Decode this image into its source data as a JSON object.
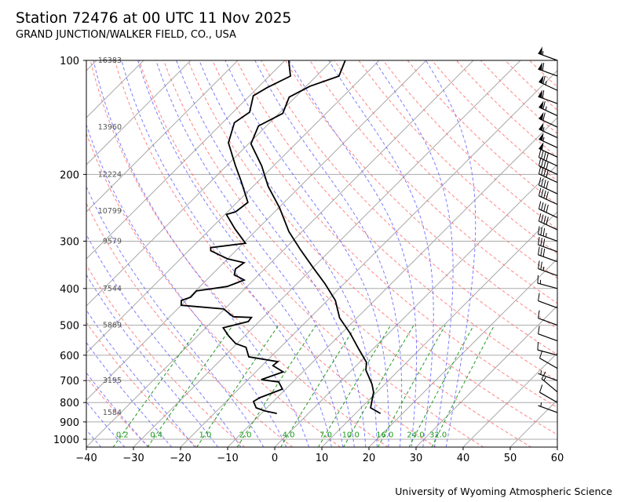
{
  "header": {
    "title": "Station 72476 at 00 UTC 11 Nov 2025",
    "subtitle": "GRAND JUNCTION/WALKER FIELD, CO., USA"
  },
  "footer": "University of Wyoming Atmospheric Science",
  "colors": {
    "isotherm": "#aaaaaa",
    "dry_adiabat": "#ff6666",
    "moist_adiabat": "#6666ff",
    "mixing_ratio": "#229922",
    "profile": "#000000"
  },
  "chart_data": {
    "type": "line",
    "subtype": "skew-t log-p",
    "title": "Station 72476 at 00 UTC 11 Nov 2025",
    "xlabel": "",
    "ylabel": "",
    "xlim": [
      -40,
      60
    ],
    "ylim": [
      1050,
      100
    ],
    "x_ticks": [
      "−40",
      "−30",
      "−20",
      "−10",
      "0",
      "10",
      "20",
      "30",
      "40",
      "50",
      "60"
    ],
    "x_tick_values": [
      -40,
      -30,
      -20,
      -10,
      0,
      10,
      20,
      30,
      40,
      50,
      60
    ],
    "y_ticks": [
      "100",
      "200",
      "300",
      "400",
      "500",
      "600",
      "700",
      "800",
      "900",
      "1000"
    ],
    "y_tick_values": [
      100,
      200,
      300,
      400,
      500,
      600,
      700,
      800,
      900,
      1000
    ],
    "height_labels": [
      {
        "p": 100,
        "text": "16383"
      },
      {
        "p": 150,
        "text": "13960"
      },
      {
        "p": 200,
        "text": "12224"
      },
      {
        "p": 250,
        "text": "10799"
      },
      {
        "p": 300,
        "text": "9579"
      },
      {
        "p": 400,
        "text": "7544"
      },
      {
        "p": 500,
        "text": "5869"
      },
      {
        "p": 700,
        "text": "3195"
      },
      {
        "p": 850,
        "text": "1584"
      }
    ],
    "mixing_ratio_labels": [
      "0.2",
      "0.4",
      "1.0",
      "2.0",
      "4.0",
      "7.0",
      "10.0",
      "16.0",
      "24.0",
      "32.0"
    ],
    "mixing_ratio_values": [
      0.2,
      0.4,
      1.0,
      2.0,
      4.0,
      7.0,
      10.0,
      16.0,
      24.0,
      32.0
    ],
    "dry_adiabats_c": [
      -30,
      -20,
      -10,
      0,
      10,
      20,
      30,
      40,
      50,
      60,
      70,
      80,
      90,
      100,
      110,
      120,
      130,
      140,
      150,
      160,
      170,
      180,
      190,
      200
    ],
    "moist_adiabats_c": [
      -40,
      -35,
      -30,
      -25,
      -20,
      -15,
      -10,
      -5,
      0,
      5,
      10,
      12.5,
      15,
      17.5,
      20,
      22.5,
      25,
      27.5,
      30,
      32.5,
      35
    ],
    "series": [
      {
        "name": "temperature",
        "p": [
          855,
          826,
          751,
          716,
          657,
          627,
          578,
          525,
          478,
          430,
          389,
          354,
          316,
          283,
          245,
          215,
          190,
          166,
          149,
          138,
          125,
          117,
          110,
          100
        ],
        "values": [
          15.3,
          12,
          9.3,
          7.3,
          3,
          1.5,
          -3,
          -8.2,
          -13.7,
          -18.3,
          -24,
          -29.7,
          -36.5,
          -42.8,
          -49.8,
          -56.8,
          -62.5,
          -69.5,
          -71.7,
          -69.2,
          -71.3,
          -69.2,
          -65.2,
          -67.2
        ]
      },
      {
        "name": "dewpoint",
        "p": [
          855,
          842,
          826,
          795,
          777,
          737,
          706,
          696,
          664,
          639,
          624,
          606,
          572,
          559,
          533,
          508,
          489,
          477,
          475,
          453,
          443,
          430,
          422,
          406,
          395,
          380,
          368,
          355,
          342,
          334,
          318,
          312,
          304,
          279,
          255,
          251,
          237,
          209,
          189,
          165,
          146,
          137,
          124,
          118,
          110,
          100
        ],
        "values": [
          -6.7,
          -9.8,
          -12.3,
          -14.2,
          -13.7,
          -10.7,
          -13,
          -17.2,
          -14.2,
          -17.7,
          -17.5,
          -24.7,
          -27.3,
          -30.3,
          -33.5,
          -36.3,
          -32.3,
          -32.5,
          -36.5,
          -40.2,
          -50,
          -51,
          -49.7,
          -49.8,
          -44.2,
          -42,
          -45.2,
          -46.2,
          -45.7,
          -50,
          -55.3,
          -56,
          -49.5,
          -54.7,
          -59.7,
          -58.3,
          -57.7,
          -63.5,
          -68.3,
          -74.5,
          -77.5,
          -76.5,
          -79.2,
          -78,
          -75.5,
          -79.2
        ]
      }
    ],
    "wind_barbs": {
      "units": "knots",
      "p": [
        100,
        110,
        120,
        130,
        140,
        150,
        160,
        170,
        180,
        190,
        200,
        210,
        225,
        240,
        260,
        280,
        300,
        320,
        340,
        370,
        400,
        450,
        500,
        550,
        600,
        650,
        700,
        750,
        800,
        850
      ],
      "speed": [
        55,
        60,
        65,
        60,
        65,
        60,
        55,
        55,
        50,
        40,
        40,
        40,
        40,
        40,
        40,
        40,
        35,
        30,
        30,
        25,
        15,
        10,
        10,
        10,
        10,
        10,
        5,
        15,
        10,
        5
      ],
      "direction": [
        290,
        290,
        295,
        290,
        295,
        295,
        295,
        295,
        295,
        295,
        295,
        295,
        295,
        295,
        295,
        295,
        290,
        290,
        290,
        290,
        285,
        290,
        290,
        290,
        285,
        300,
        290,
        310,
        300,
        290
      ]
    },
    "grid": true
  }
}
